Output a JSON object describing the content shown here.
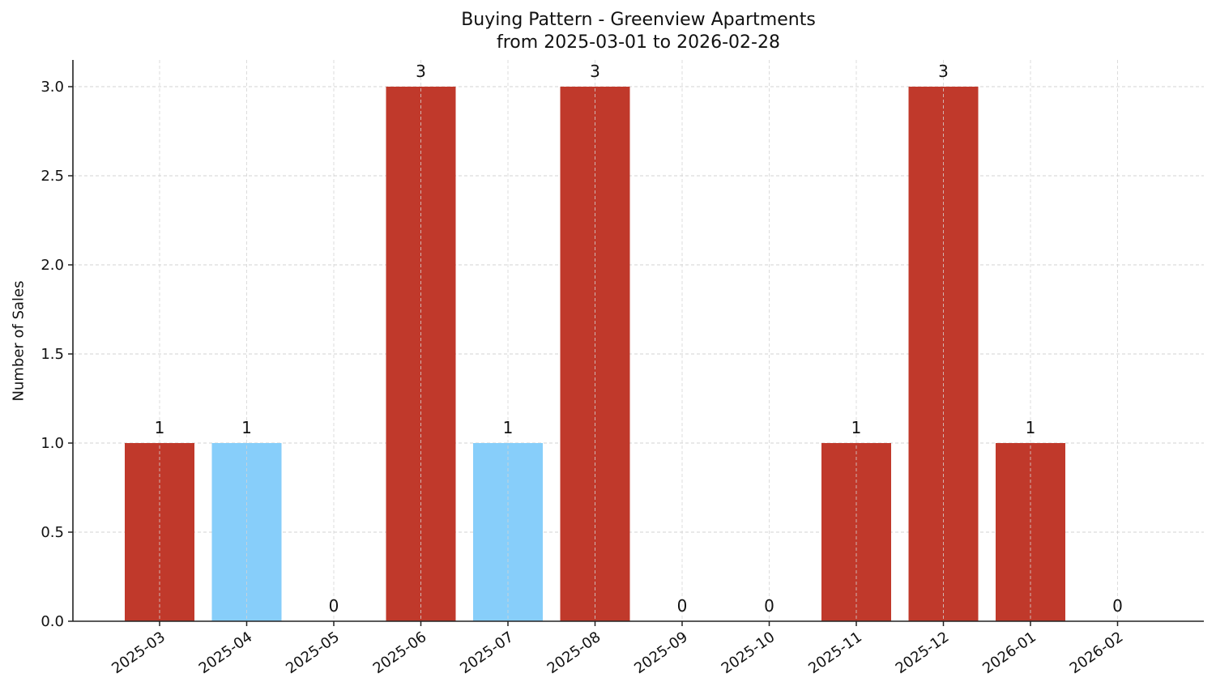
{
  "chart_data": {
    "type": "bar",
    "title": "Buying Pattern - Greenview Apartments",
    "subtitle": "from 2025-03-01 to 2026-02-28",
    "xlabel": "",
    "ylabel": "Number of Sales",
    "ylim": [
      0,
      3.15
    ],
    "yticks": [
      "0.0",
      "0.5",
      "1.0",
      "1.5",
      "2.0",
      "2.5",
      "3.0"
    ],
    "grid": true,
    "legend": null,
    "categories": [
      "2025-03",
      "2025-04",
      "2025-05",
      "2025-06",
      "2025-07",
      "2025-08",
      "2025-09",
      "2025-10",
      "2025-11",
      "2025-12",
      "2026-01",
      "2026-02"
    ],
    "values": [
      1,
      1,
      0,
      3,
      1,
      3,
      0,
      0,
      1,
      3,
      1,
      0
    ],
    "value_labels": [
      "1",
      "1",
      "0",
      "3",
      "1",
      "3",
      "0",
      "0",
      "1",
      "3",
      "1",
      "0"
    ],
    "bar_colors": [
      "#c0392b",
      "#87cefa",
      "#c0392b",
      "#c0392b",
      "#87cefa",
      "#c0392b",
      "#c0392b",
      "#c0392b",
      "#c0392b",
      "#c0392b",
      "#c0392b",
      "#c0392b"
    ],
    "colors": {
      "primary": "#c0392b",
      "highlight": "#87cefa",
      "grid": "#d3d3d3",
      "axis": "#222222"
    }
  }
}
